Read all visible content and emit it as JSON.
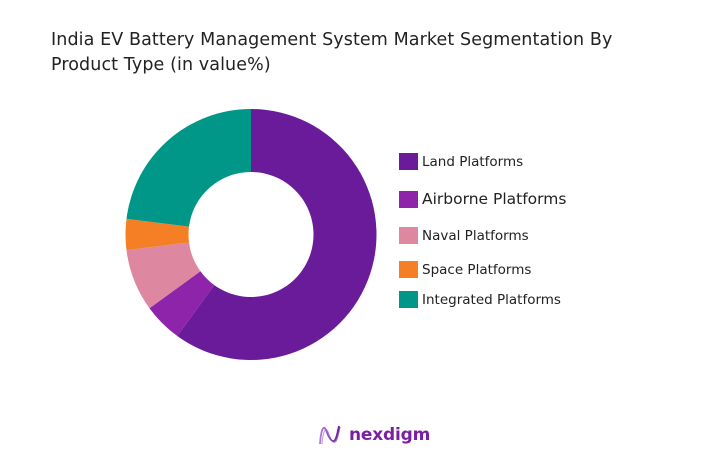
{
  "title": {
    "line1": "India EV Battery Management System Market Segmentation By",
    "line2": "Product Type (in value%)"
  },
  "legend": {
    "items": [
      {
        "label": "Land Platforms",
        "color": "#6a1b9a"
      },
      {
        "label": "Airborne Platforms",
        "color": "#8e24aa"
      },
      {
        "label": "Naval Platforms",
        "color": "#dd88a0"
      },
      {
        "label": "Space Platforms",
        "color": "#f47f24"
      },
      {
        "label": "Integrated Platforms",
        "color": "#009688"
      }
    ]
  },
  "logo": {
    "text": "nexdigm",
    "icon": "nexdigm-wave-icon",
    "color": "#7b1fa2"
  },
  "chart_data": {
    "type": "pie",
    "subtype": "donut",
    "title": "India EV Battery Management System Market Segmentation By Product Type (in value%)",
    "categories": [
      "Land Platforms",
      "Airborne Platforms",
      "Naval Platforms",
      "Space Platforms",
      "Integrated Platforms"
    ],
    "values": [
      60,
      5,
      8,
      4,
      23
    ],
    "colors": [
      "#6a1b9a",
      "#8e24aa",
      "#dd88a0",
      "#f47f24",
      "#009688"
    ],
    "unit": "%",
    "start_angle": "12 o'clock",
    "direction": "clockwise",
    "legend_position": "right",
    "data_labels": false
  }
}
